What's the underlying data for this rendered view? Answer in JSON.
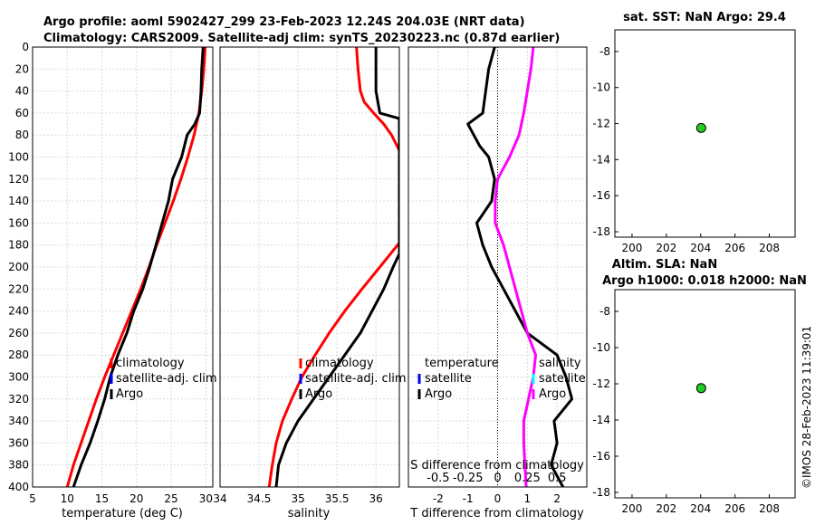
{
  "header": {
    "title1": "Argo profile: aoml 5902427_299 23-Feb-2023 12.24S 204.03E (NRT data)",
    "title2": "Climatology: CARS2009. Satellite-adj clim: synTS_20230223.nc (0.87d earlier)"
  },
  "timestamp": "©IMOS 28-Feb-2023 11:39:01",
  "colors": {
    "climatology": "#ff0000",
    "satellite": "#0000ff",
    "argo": "#000000",
    "salinity_diff": "#ff00ff",
    "sat_diff": "#00ffff",
    "marker": "#22cc22"
  },
  "chart_data": [
    {
      "name": "temperature",
      "type": "line",
      "xlabel": "temperature (deg C)",
      "xlim": [
        5,
        31
      ],
      "ylim": [
        0,
        400
      ],
      "xticks": [
        5,
        10,
        15,
        20,
        25,
        30
      ],
      "yticks": [
        0,
        20,
        40,
        60,
        80,
        100,
        120,
        140,
        160,
        180,
        200,
        220,
        240,
        260,
        280,
        300,
        320,
        340,
        360,
        380,
        400
      ],
      "legend": [
        "climatology",
        "satellite-adj. clim",
        "Argo"
      ],
      "series": [
        {
          "name": "climatology",
          "depth": [
            0,
            20,
            40,
            60,
            80,
            100,
            120,
            140,
            160,
            180,
            200,
            220,
            240,
            260,
            280,
            300,
            320,
            340,
            360,
            380,
            400
          ],
          "values": [
            29.9,
            29.7,
            29.4,
            29.0,
            28.3,
            27.4,
            26.4,
            25.3,
            24.1,
            22.9,
            21.8,
            20.6,
            19.3,
            18.0,
            16.7,
            15.4,
            14.2,
            13.1,
            12.0,
            10.9,
            10.0
          ]
        },
        {
          "name": "Argo",
          "depth": [
            0,
            20,
            40,
            60,
            70,
            80,
            100,
            120,
            140,
            160,
            180,
            200,
            220,
            240,
            260,
            280,
            300,
            320,
            340,
            360,
            380,
            400
          ],
          "values": [
            29.6,
            29.4,
            29.3,
            29.1,
            28.4,
            27.3,
            26.5,
            25.2,
            24.6,
            23.7,
            22.8,
            21.9,
            20.9,
            19.6,
            18.6,
            17.3,
            16.2,
            15.4,
            14.4,
            13.3,
            12.0,
            10.9
          ]
        }
      ]
    },
    {
      "name": "salinity",
      "type": "line",
      "xlabel": "salinity",
      "xlim": [
        34,
        36.3
      ],
      "ylim": [
        0,
        400
      ],
      "xticks": [
        34,
        34.5,
        35,
        35.5,
        36
      ],
      "legend": [
        "climatology",
        "satellite-adj. clim",
        "Argo"
      ],
      "series": [
        {
          "name": "climatology",
          "depth": [
            0,
            20,
            40,
            50,
            60,
            70,
            80,
            94,
            178,
            200,
            220,
            240,
            260,
            280,
            300,
            320,
            340,
            360,
            380,
            400
          ],
          "values": [
            35.75,
            35.77,
            35.8,
            35.85,
            35.97,
            36.1,
            36.2,
            36.3,
            36.3,
            36.05,
            35.82,
            35.6,
            35.4,
            35.22,
            35.05,
            34.92,
            34.8,
            34.72,
            34.67,
            34.63
          ]
        },
        {
          "name": "Argo",
          "depth": [
            0,
            20,
            40,
            60,
            65,
            188,
            200,
            220,
            240,
            260,
            280,
            300,
            320,
            340,
            360,
            380,
            400
          ],
          "values": [
            36.0,
            36.0,
            36.0,
            36.05,
            36.3,
            36.3,
            36.22,
            36.1,
            35.95,
            35.8,
            35.6,
            35.4,
            35.2,
            35.0,
            34.85,
            34.75,
            34.72
          ]
        }
      ]
    },
    {
      "name": "difference",
      "type": "line",
      "xlabel": "T difference from climatology",
      "xlabel2": "S difference from climatology",
      "xlim": [
        -3,
        3
      ],
      "ylim": [
        0,
        400
      ],
      "xticks": [
        -2,
        -1,
        0,
        1,
        2
      ],
      "xticks2": [
        "-0.5",
        "-0.25",
        "0",
        "0.25",
        "0.5"
      ],
      "legend_t": [
        "temperature",
        "satellite",
        "Argo"
      ],
      "legend_s": [
        "salinity",
        "satellite",
        "Argo"
      ],
      "series": [
        {
          "name": "T difference",
          "depth": [
            0,
            20,
            40,
            60,
            70,
            80,
            90,
            100,
            120,
            140,
            160,
            180,
            200,
            220,
            240,
            260,
            280,
            300,
            320,
            340,
            360,
            380,
            400
          ],
          "values": [
            -0.1,
            -0.3,
            -0.4,
            -0.5,
            -1.0,
            -0.8,
            -0.6,
            -0.3,
            -0.1,
            -0.2,
            -0.7,
            -0.5,
            -0.2,
            0.2,
            0.6,
            1.0,
            2.0,
            2.3,
            2.5,
            1.9,
            2.0,
            1.8,
            2.2
          ]
        },
        {
          "name": "S difference",
          "depth": [
            0,
            20,
            40,
            60,
            80,
            100,
            120,
            140,
            160,
            180,
            200,
            220,
            240,
            260,
            280,
            300,
            320,
            340,
            360,
            380,
            400
          ],
          "values": [
            0.3,
            0.28,
            0.25,
            0.22,
            0.18,
            0.1,
            0.0,
            -0.02,
            -0.02,
            0.05,
            0.1,
            0.15,
            0.2,
            0.25,
            0.32,
            0.3,
            0.26,
            0.22,
            0.22,
            0.23,
            0.24
          ]
        }
      ]
    },
    {
      "name": "sst_map",
      "type": "scatter",
      "title": "sat. SST: NaN Argo: 29.4",
      "xlim": [
        199,
        209.5
      ],
      "ylim": [
        -18.3,
        -6.8
      ],
      "xticks": [
        200,
        202,
        204,
        206,
        208
      ],
      "yticks": [
        -8,
        -10,
        -12,
        -14,
        -16,
        -18
      ],
      "points": [
        {
          "x": 204.03,
          "y": -12.24
        }
      ]
    },
    {
      "name": "sla_map",
      "type": "scatter",
      "title": "Altim. SLA: NaN",
      "title2": "Argo h1000: 0.018 h2000: NaN",
      "xlim": [
        199,
        209.5
      ],
      "ylim": [
        -18.3,
        -6.8
      ],
      "xticks": [
        200,
        202,
        204,
        206,
        208
      ],
      "yticks": [
        -8,
        -10,
        -12,
        -14,
        -16,
        -18
      ],
      "points": [
        {
          "x": 204.03,
          "y": -12.24
        }
      ]
    }
  ]
}
